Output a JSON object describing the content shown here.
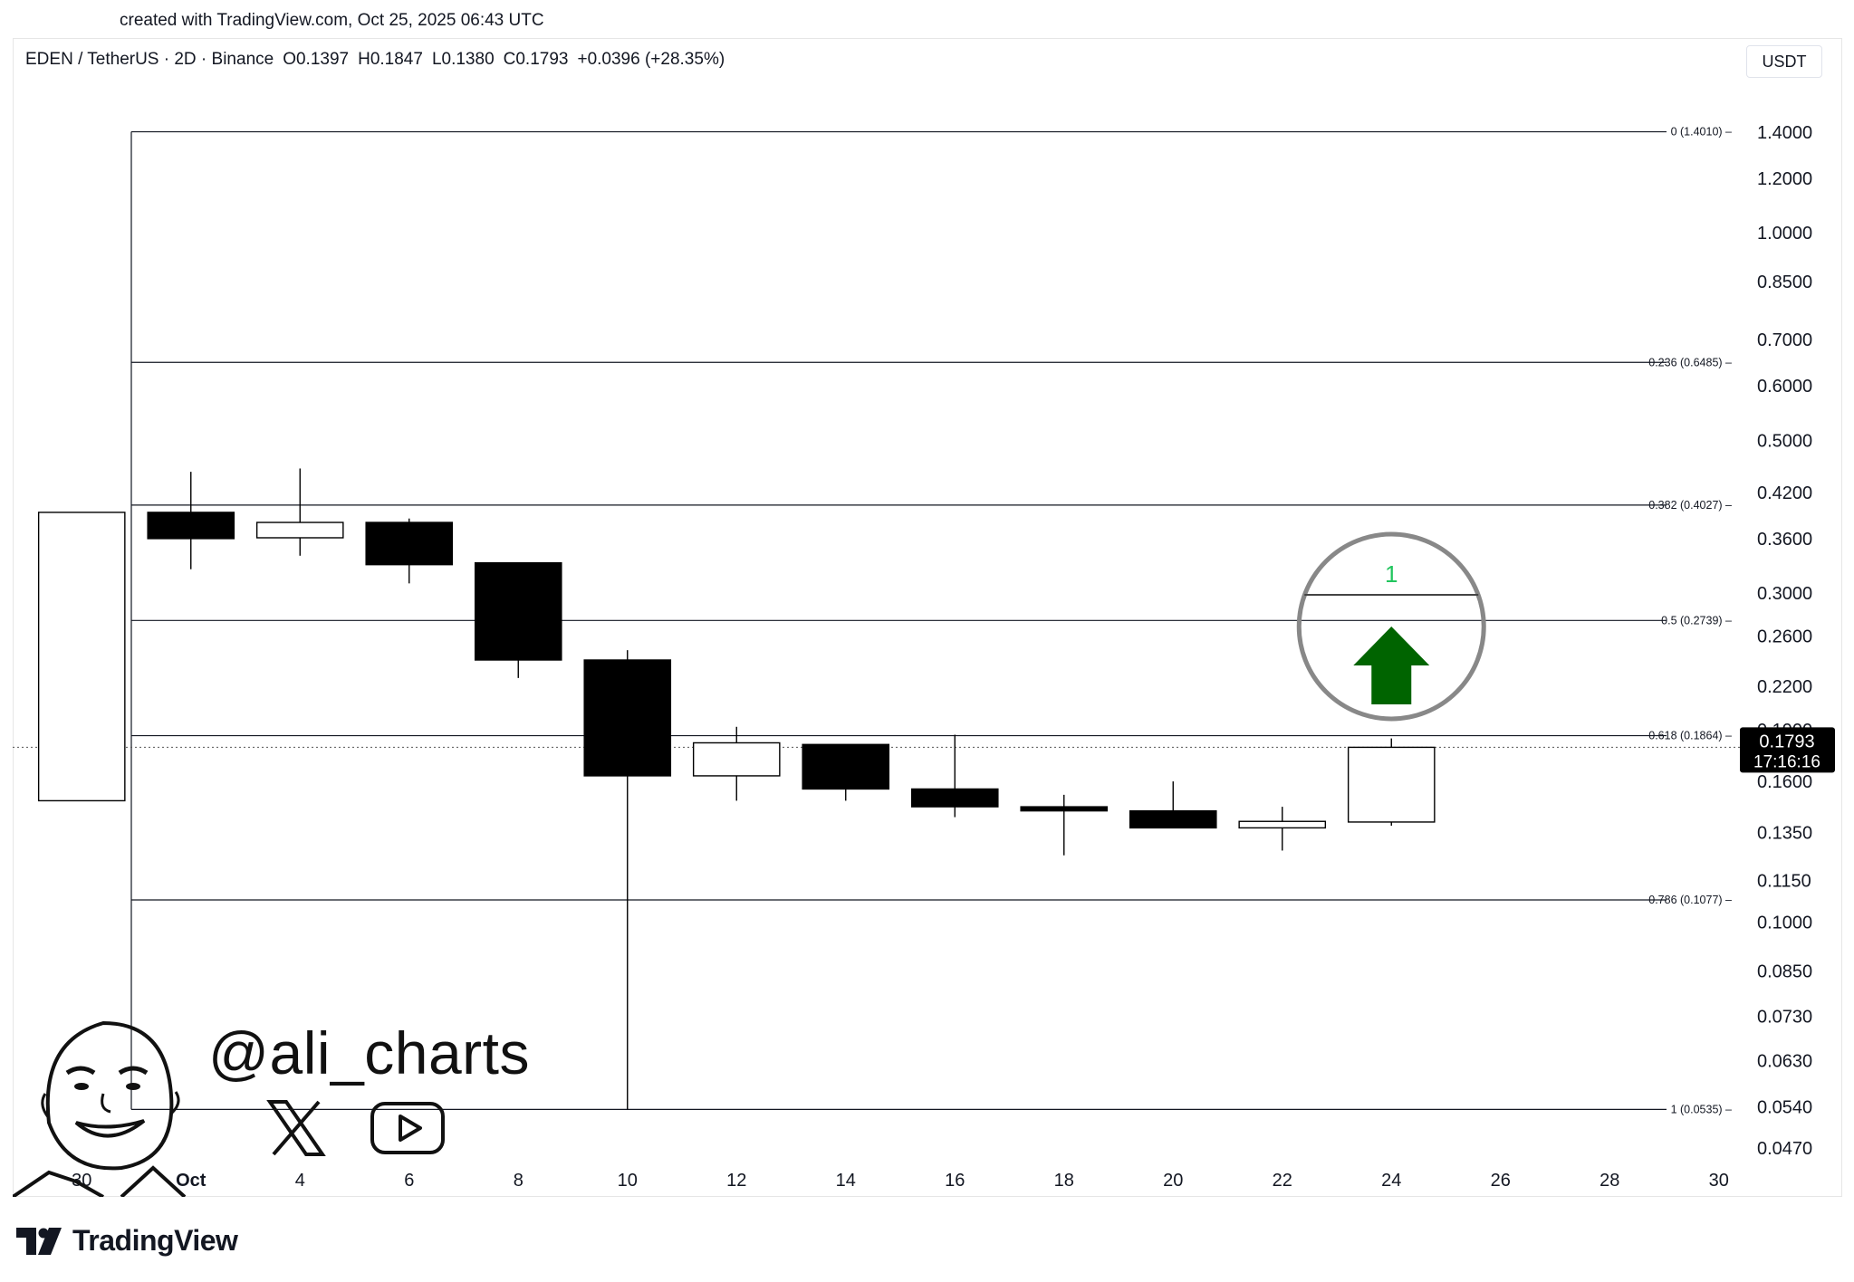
{
  "header": {
    "created": "created with TradingView.com, Oct 25, 2025 06:43 UTC"
  },
  "legend": {
    "symbol": "EDEN / TetherUS · 2D · Binance",
    "open": "O0.1397",
    "high": "H0.1847",
    "low": "L0.1380",
    "close": "C0.1793",
    "change": "+0.0396 (+28.35%)"
  },
  "currency_label": "USDT",
  "price_tag": {
    "price": "0.1793",
    "countdown": "17:16:16"
  },
  "annotation": {
    "count_label": "1",
    "arrow_color": "#006400",
    "count_color": "#22c55e"
  },
  "watermark": {
    "handle": "@ali_charts"
  },
  "branding": {
    "logo_text": "TradingView"
  },
  "chart_data": {
    "type": "candlestick",
    "y_scale": "log",
    "ylim": [
      0.044,
      1.56
    ],
    "xlim": [
      "2025-09-29",
      "2025-10-31"
    ],
    "y_ticks": [
      "1.4000",
      "1.2000",
      "1.0000",
      "0.8500",
      "0.7000",
      "0.6000",
      "0.5000",
      "0.4200",
      "0.3600",
      "0.3000",
      "0.2600",
      "0.2200",
      "0.1900",
      "0.1600",
      "0.1350",
      "0.1150",
      "0.1000",
      "0.0850",
      "0.0730",
      "0.0630",
      "0.0540",
      "0.0470"
    ],
    "x_ticks": [
      {
        "label": "30",
        "date": "2025-09-30"
      },
      {
        "label": "Oct",
        "date": "2025-10-02"
      },
      {
        "label": "4",
        "date": "2025-10-04"
      },
      {
        "label": "6",
        "date": "2025-10-06"
      },
      {
        "label": "8",
        "date": "2025-10-08"
      },
      {
        "label": "10",
        "date": "2025-10-10"
      },
      {
        "label": "12",
        "date": "2025-10-12"
      },
      {
        "label": "14",
        "date": "2025-10-14"
      },
      {
        "label": "16",
        "date": "2025-10-16"
      },
      {
        "label": "18",
        "date": "2025-10-18"
      },
      {
        "label": "20",
        "date": "2025-10-20"
      },
      {
        "label": "22",
        "date": "2025-10-22"
      },
      {
        "label": "24",
        "date": "2025-10-24"
      },
      {
        "label": "26",
        "date": "2025-10-26"
      },
      {
        "label": "28",
        "date": "2025-10-28"
      },
      {
        "label": "30",
        "date": "2025-10-30"
      }
    ],
    "candles": [
      {
        "date": "2025-09-30",
        "open": 0.15,
        "high": 0.393,
        "low": 0.15,
        "close": 0.393
      },
      {
        "date": "2025-10-02",
        "open": 0.393,
        "high": 0.45,
        "low": 0.325,
        "close": 0.36
      },
      {
        "date": "2025-10-04",
        "open": 0.361,
        "high": 0.455,
        "low": 0.34,
        "close": 0.38
      },
      {
        "date": "2025-10-06",
        "open": 0.38,
        "high": 0.385,
        "low": 0.31,
        "close": 0.33
      },
      {
        "date": "2025-10-08",
        "open": 0.332,
        "high": 0.332,
        "low": 0.226,
        "close": 0.24
      },
      {
        "date": "2025-10-10",
        "open": 0.24,
        "high": 0.248,
        "low": 0.0535,
        "close": 0.163
      },
      {
        "date": "2025-10-12",
        "open": 0.163,
        "high": 0.192,
        "low": 0.15,
        "close": 0.182
      },
      {
        "date": "2025-10-14",
        "open": 0.181,
        "high": 0.181,
        "low": 0.15,
        "close": 0.156
      },
      {
        "date": "2025-10-16",
        "open": 0.156,
        "high": 0.187,
        "low": 0.142,
        "close": 0.147
      },
      {
        "date": "2025-10-18",
        "open": 0.147,
        "high": 0.153,
        "low": 0.125,
        "close": 0.145
      },
      {
        "date": "2025-10-20",
        "open": 0.145,
        "high": 0.16,
        "low": 0.137,
        "close": 0.137
      },
      {
        "date": "2025-10-22",
        "open": 0.137,
        "high": 0.147,
        "low": 0.127,
        "close": 0.14
      },
      {
        "date": "2025-10-24",
        "open": 0.1397,
        "high": 0.1847,
        "low": 0.138,
        "close": 0.1793
      }
    ],
    "fib_levels": [
      {
        "label": "0 (1.4010)",
        "price": 1.401
      },
      {
        "label": "0.236 (0.6485)",
        "price": 0.6485
      },
      {
        "label": "0.382 (0.4027)",
        "price": 0.4027
      },
      {
        "label": "0.5 (0.2739)",
        "price": 0.2739
      },
      {
        "label": "0.618 (0.1864)",
        "price": 0.1864
      },
      {
        "label": "0.786 (0.1077)",
        "price": 0.1077
      },
      {
        "label": "1 (0.0535)",
        "price": 0.0535
      }
    ],
    "current_price": 0.1793
  }
}
